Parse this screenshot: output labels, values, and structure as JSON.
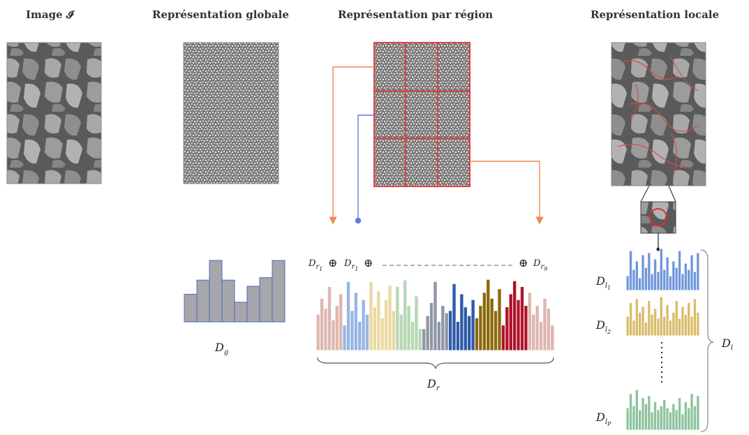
{
  "headers": {
    "image": "Image 𝓘",
    "global": "Représentation globale",
    "region": "Représentation par région",
    "local": "Représentation locale"
  },
  "labels": {
    "dg_main": "D",
    "dg_sub": "g",
    "dr_main": "D",
    "dr_sub": "r",
    "dl_main": "D",
    "dl_sub": "l",
    "dl1_main": "D",
    "dl1_sub": "l",
    "dl1_subsub": "1",
    "dl2_main": "D",
    "dl2_sub": "l",
    "dl2_subsub": "2",
    "dlp_main": "D",
    "dlp_sub": "l",
    "dlp_subsub": "P",
    "dr1_main": "D",
    "dr1_sub": "r",
    "dr1_subsub": "1",
    "dr2_main": "D",
    "dr2_sub": "r",
    "dr2_subsub": "1",
    "drn_main": "D",
    "drn_sub": "r",
    "drn_subsub": "9",
    "oplus": "⊕"
  },
  "colors": {
    "bark_dark": "#4a4a4a",
    "bark_light": "#a6a6a6",
    "grid_red": "#e04040",
    "arrow_orange": "#f08a50",
    "arrow_blue": "#5b7fd0",
    "hist_gray": "#a6a6ab",
    "hist_edge": "#4a6cc4",
    "hist_pink": "#ddb7ae",
    "hist_lightblue": "#98b6e6",
    "hist_beige": "#ecd9a0",
    "hist_lightgreen": "#b6d8b4",
    "hist_slate": "#8f97a6",
    "hist_blue": "#2f5ba8",
    "hist_olive": "#8c6a0c",
    "hist_red": "#b0132a",
    "local_blue": "#6f97dc",
    "local_gold": "#d9bc6a",
    "local_green": "#8cc39d"
  },
  "global_histogram": {
    "values": [
      0.45,
      0.68,
      1.0,
      0.68,
      0.32,
      0.58,
      0.72,
      1.0
    ]
  },
  "region_histogram": {
    "segments": [
      {
        "color_key": "hist_pink",
        "values": [
          0.5,
          0.72,
          0.58,
          0.88,
          0.42,
          0.62,
          0.78
        ]
      },
      {
        "color_key": "hist_lightblue",
        "values": [
          0.35,
          0.95,
          0.55,
          0.8,
          0.4,
          0.7,
          0.5
        ]
      },
      {
        "color_key": "hist_beige",
        "values": [
          0.95,
          0.6,
          0.82,
          0.45,
          0.7,
          0.9,
          0.55
        ]
      },
      {
        "color_key": "hist_lightgreen",
        "values": [
          0.88,
          0.5,
          0.97,
          0.62,
          0.4,
          0.75,
          0.3
        ]
      },
      {
        "color_key": "hist_slate",
        "values": [
          0.3,
          0.48,
          0.66,
          0.95,
          0.4,
          0.62,
          0.52
        ]
      },
      {
        "color_key": "hist_blue",
        "values": [
          0.55,
          0.92,
          0.4,
          0.78,
          0.6,
          0.48,
          0.7
        ]
      },
      {
        "color_key": "hist_olive",
        "values": [
          0.45,
          0.62,
          0.8,
          0.98,
          0.72,
          0.55,
          0.85
        ]
      },
      {
        "color_key": "hist_red",
        "values": [
          0.35,
          0.6,
          0.78,
          0.96,
          0.7,
          0.88,
          0.62
        ]
      },
      {
        "color_key": "hist_pink",
        "values": [
          0.8,
          0.5,
          0.62,
          0.4,
          0.72,
          0.58,
          0.35
        ]
      }
    ]
  },
  "local_histograms": [
    {
      "color_key": "local_blue",
      "values": [
        0.35,
        0.95,
        0.5,
        0.7,
        0.3,
        0.85,
        0.55,
        0.9,
        0.4,
        0.75,
        0.45,
        1.0,
        0.5,
        0.8,
        0.35,
        0.7,
        0.55,
        0.95,
        0.4,
        0.65,
        0.5,
        0.85,
        0.45,
        0.9
      ]
    },
    {
      "color_key": "local_gold",
      "values": [
        0.5,
        0.85,
        0.4,
        0.95,
        0.6,
        0.75,
        0.35,
        0.9,
        0.55,
        0.7,
        0.45,
        1.0,
        0.5,
        0.8,
        0.4,
        0.6,
        0.9,
        0.45,
        0.75,
        0.55,
        0.85,
        0.5,
        0.95,
        0.6
      ]
    },
    {
      "color_key": "local_green",
      "values": [
        0.55,
        0.9,
        0.6,
        1.0,
        0.5,
        0.8,
        0.65,
        0.85,
        0.45,
        0.7,
        0.5,
        0.6,
        0.75,
        0.55,
        0.45,
        0.65,
        0.5,
        0.8,
        0.4,
        0.7,
        0.55,
        0.9,
        0.6,
        0.85
      ]
    }
  ]
}
